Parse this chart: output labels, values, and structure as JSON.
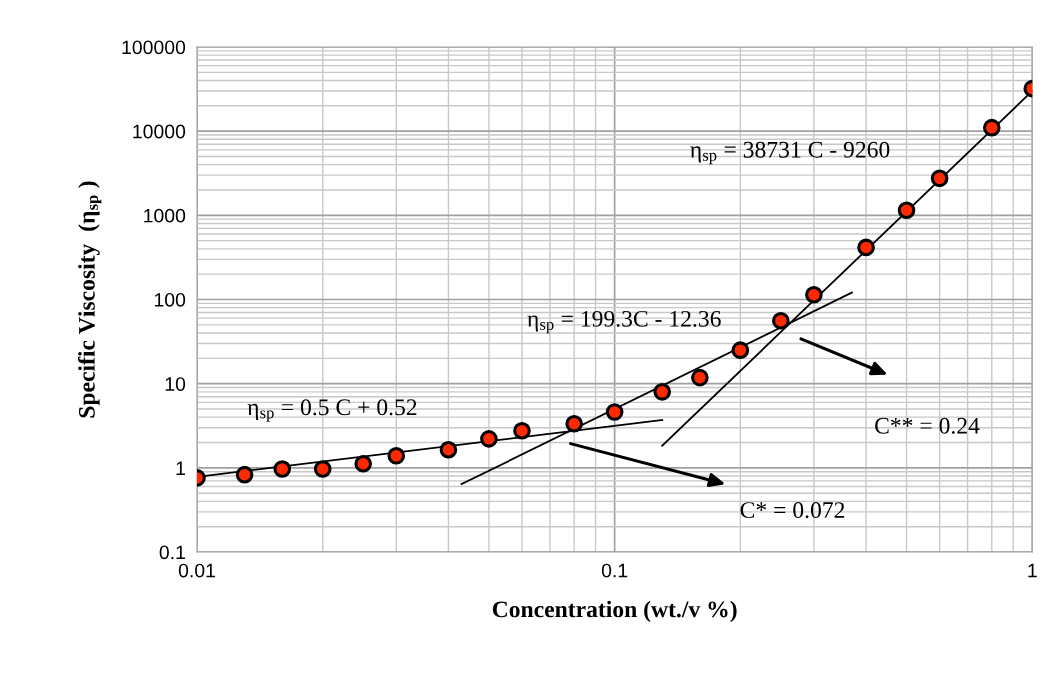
{
  "chart_data": {
    "type": "scatter",
    "xlabel": "Concentration (wt./v %)",
    "ylabel": "Specific Viscosity  (η$_{sp}$ )",
    "log": "xy",
    "grid": true,
    "legend": false,
    "xlim": [
      0.01,
      1
    ],
    "xticks": [
      0.01,
      0.1,
      1
    ],
    "ylim": [
      0.1,
      100000
    ],
    "yticks": [
      0.1,
      1,
      10,
      100,
      1000,
      10000,
      100000
    ],
    "series": [
      {
        "type": "line",
        "color": "#000000",
        "x": [
          0.01,
          0.13
        ],
        "values": [
          0.78,
          3.7
        ]
      },
      {
        "type": "line",
        "color": "#000000",
        "x": [
          0.043,
          0.37
        ],
        "values": [
          0.64,
          121
        ]
      },
      {
        "type": "line",
        "color": "#000000",
        "x": [
          0.13,
          1
        ],
        "values": [
          1.83,
          30000
        ]
      },
      {
        "marker": "circle",
        "color": "#ff2a00",
        "x": [
          0.01,
          0.013,
          0.016,
          0.02,
          0.025,
          0.03,
          0.04,
          0.05,
          0.06,
          0.08,
          0.1,
          0.13,
          0.16,
          0.2,
          0.25,
          0.3,
          0.4,
          0.5,
          0.6,
          0.8,
          1
        ],
        "values": [
          0.76,
          0.83,
          0.97,
          0.97,
          1.12,
          1.39,
          1.64,
          2.21,
          2.76,
          3.34,
          4.6,
          8.0,
          11.8,
          25,
          56,
          114,
          416,
          1150,
          2750,
          11000,
          32000
        ]
      }
    ],
    "annotations": [
      "η$_{sp}$ = 0.5 C + 0.52",
      "η$_{sp}$ = 199.3C - 12.36",
      "η$_{sp}$ = 38731 C - 9260",
      "C* = 0.072",
      "C** = 0.24"
    ]
  }
}
